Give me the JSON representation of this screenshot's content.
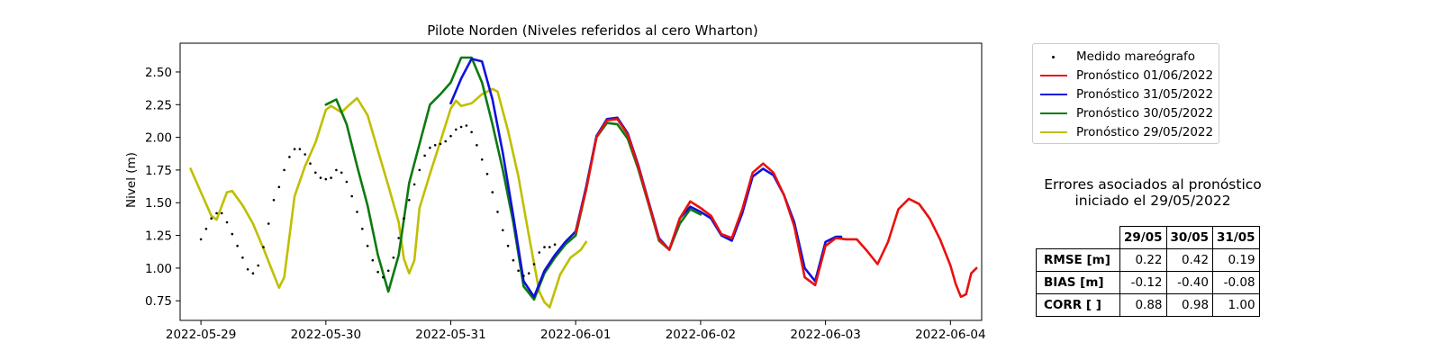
{
  "chart_data": {
    "type": "line",
    "title": "Pilote Norden (Niveles referidos al cero Wharton)",
    "xlabel": "",
    "ylabel": "Nivel (m)",
    "xlim": [
      "2022-05-28T20:00",
      "2022-06-04T06:00"
    ],
    "ylim": [
      0.6,
      2.72
    ],
    "x_ticks": [
      "2022-05-29",
      "2022-05-30",
      "2022-05-31",
      "2022-06-01",
      "2022-06-02",
      "2022-06-03",
      "2022-06-04"
    ],
    "y_ticks": [
      "0.75",
      "1.00",
      "1.25",
      "1.50",
      "1.75",
      "2.00",
      "2.25",
      "2.50"
    ],
    "legend_position": "outside right, top",
    "series": [
      {
        "name": "Medido mareógrafo",
        "style": "dots",
        "color": "#000000",
        "points": [
          [
            "2022-05-29T00:00",
            1.22
          ],
          [
            "2022-05-29T01:00",
            1.3
          ],
          [
            "2022-05-29T02:00",
            1.38
          ],
          [
            "2022-05-29T03:00",
            1.42
          ],
          [
            "2022-05-29T04:00",
            1.42
          ],
          [
            "2022-05-29T05:00",
            1.35
          ],
          [
            "2022-05-29T06:00",
            1.26
          ],
          [
            "2022-05-29T07:00",
            1.17
          ],
          [
            "2022-05-29T08:00",
            1.08
          ],
          [
            "2022-05-29T09:00",
            0.99
          ],
          [
            "2022-05-29T10:00",
            0.96
          ],
          [
            "2022-05-29T11:00",
            1.02
          ],
          [
            "2022-05-29T12:00",
            1.16
          ],
          [
            "2022-05-29T13:00",
            1.34
          ],
          [
            "2022-05-29T14:00",
            1.52
          ],
          [
            "2022-05-29T15:00",
            1.62
          ],
          [
            "2022-05-29T16:00",
            1.75
          ],
          [
            "2022-05-29T17:00",
            1.85
          ],
          [
            "2022-05-29T18:00",
            1.91
          ],
          [
            "2022-05-29T19:00",
            1.91
          ],
          [
            "2022-05-29T20:00",
            1.87
          ],
          [
            "2022-05-29T21:00",
            1.8
          ],
          [
            "2022-05-29T22:00",
            1.73
          ],
          [
            "2022-05-29T23:00",
            1.69
          ],
          [
            "2022-05-30T00:00",
            1.68
          ],
          [
            "2022-05-30T01:00",
            1.69
          ],
          [
            "2022-05-30T02:00",
            1.75
          ],
          [
            "2022-05-30T03:00",
            1.73
          ],
          [
            "2022-05-30T04:00",
            1.66
          ],
          [
            "2022-05-30T05:00",
            1.55
          ],
          [
            "2022-05-30T06:00",
            1.43
          ],
          [
            "2022-05-30T07:00",
            1.3
          ],
          [
            "2022-05-30T08:00",
            1.17
          ],
          [
            "2022-05-30T09:00",
            1.06
          ],
          [
            "2022-05-30T10:00",
            0.97
          ],
          [
            "2022-05-30T11:00",
            0.93
          ],
          [
            "2022-05-30T12:00",
            0.98
          ],
          [
            "2022-05-30T13:00",
            1.08
          ],
          [
            "2022-05-30T14:00",
            1.23
          ],
          [
            "2022-05-30T15:00",
            1.38
          ],
          [
            "2022-05-30T16:00",
            1.52
          ],
          [
            "2022-05-30T17:00",
            1.64
          ],
          [
            "2022-05-30T18:00",
            1.75
          ],
          [
            "2022-05-30T19:00",
            1.86
          ],
          [
            "2022-05-30T20:00",
            1.92
          ],
          [
            "2022-05-30T21:00",
            1.94
          ],
          [
            "2022-05-30T22:00",
            1.95
          ],
          [
            "2022-05-30T23:00",
            1.97
          ],
          [
            "2022-05-31T00:00",
            2.01
          ],
          [
            "2022-05-31T01:00",
            2.06
          ],
          [
            "2022-05-31T02:00",
            2.08
          ],
          [
            "2022-05-31T03:00",
            2.09
          ],
          [
            "2022-05-31T04:00",
            2.04
          ],
          [
            "2022-05-31T05:00",
            1.94
          ],
          [
            "2022-05-31T06:00",
            1.83
          ],
          [
            "2022-05-31T07:00",
            1.72
          ],
          [
            "2022-05-31T08:00",
            1.58
          ],
          [
            "2022-05-31T09:00",
            1.43
          ],
          [
            "2022-05-31T10:00",
            1.29
          ],
          [
            "2022-05-31T11:00",
            1.17
          ],
          [
            "2022-05-31T12:00",
            1.06
          ],
          [
            "2022-05-31T13:00",
            0.98
          ],
          [
            "2022-05-31T14:00",
            0.94
          ],
          [
            "2022-05-31T15:00",
            0.96
          ],
          [
            "2022-05-31T16:00",
            1.03
          ],
          [
            "2022-05-31T17:00",
            1.12
          ],
          [
            "2022-05-31T18:00",
            1.16
          ],
          [
            "2022-05-31T19:00",
            1.16
          ],
          [
            "2022-05-31T20:00",
            1.18
          ]
        ]
      },
      {
        "name": "Pronóstico 01/06/2022",
        "style": "line",
        "color": "#e8110f",
        "points": [
          [
            "2022-06-01T00:00",
            1.27
          ],
          [
            "2022-06-01T02:00",
            1.6
          ],
          [
            "2022-06-01T04:00",
            2.0
          ],
          [
            "2022-06-01T06:00",
            2.13
          ],
          [
            "2022-06-01T08:00",
            2.14
          ],
          [
            "2022-06-01T10:00",
            2.02
          ],
          [
            "2022-06-01T12:00",
            1.78
          ],
          [
            "2022-06-01T14:00",
            1.5
          ],
          [
            "2022-06-01T16:00",
            1.22
          ],
          [
            "2022-06-01T18:00",
            1.14
          ],
          [
            "2022-06-01T20:00",
            1.38
          ],
          [
            "2022-06-01T22:00",
            1.51
          ],
          [
            "2022-06-02T00:00",
            1.46
          ],
          [
            "2022-06-02T02:00",
            1.4
          ],
          [
            "2022-06-02T04:00",
            1.26
          ],
          [
            "2022-06-02T06:00",
            1.23
          ],
          [
            "2022-06-02T08:00",
            1.45
          ],
          [
            "2022-06-02T10:00",
            1.73
          ],
          [
            "2022-06-02T12:00",
            1.8
          ],
          [
            "2022-06-02T14:00",
            1.73
          ],
          [
            "2022-06-02T16:00",
            1.56
          ],
          [
            "2022-06-02T18:00",
            1.32
          ],
          [
            "2022-06-02T20:00",
            0.93
          ],
          [
            "2022-06-02T22:00",
            0.87
          ],
          [
            "2022-06-03T00:00",
            1.17
          ],
          [
            "2022-06-03T02:00",
            1.23
          ],
          [
            "2022-06-03T04:00",
            1.22
          ],
          [
            "2022-06-03T06:00",
            1.22
          ],
          [
            "2022-06-03T08:00",
            1.13
          ],
          [
            "2022-06-03T10:00",
            1.03
          ],
          [
            "2022-06-03T12:00",
            1.2
          ],
          [
            "2022-06-03T14:00",
            1.45
          ],
          [
            "2022-06-03T16:00",
            1.53
          ],
          [
            "2022-06-03T18:00",
            1.49
          ],
          [
            "2022-06-03T20:00",
            1.38
          ],
          [
            "2022-06-03T22:00",
            1.22
          ],
          [
            "2022-06-04T00:00",
            1.02
          ],
          [
            "2022-06-04T01:00",
            0.88
          ],
          [
            "2022-06-04T02:00",
            0.78
          ],
          [
            "2022-06-04T03:00",
            0.8
          ],
          [
            "2022-06-04T04:00",
            0.96
          ],
          [
            "2022-06-04T05:00",
            1.0
          ]
        ]
      },
      {
        "name": "Pronóstico 31/05/2022",
        "style": "line",
        "color": "#1010dd",
        "points": [
          [
            "2022-05-31T00:00",
            2.26
          ],
          [
            "2022-05-31T02:00",
            2.45
          ],
          [
            "2022-05-31T04:00",
            2.6
          ],
          [
            "2022-05-31T06:00",
            2.58
          ],
          [
            "2022-05-31T08:00",
            2.29
          ],
          [
            "2022-05-31T10:00",
            1.88
          ],
          [
            "2022-05-31T12:00",
            1.4
          ],
          [
            "2022-05-31T14:00",
            0.9
          ],
          [
            "2022-05-31T16:00",
            0.78
          ],
          [
            "2022-05-31T18:00",
            0.98
          ],
          [
            "2022-05-31T20:00",
            1.1
          ],
          [
            "2022-05-31T22:00",
            1.2
          ],
          [
            "2022-06-01T00:00",
            1.28
          ],
          [
            "2022-06-01T02:00",
            1.62
          ],
          [
            "2022-06-01T04:00",
            2.01
          ],
          [
            "2022-06-01T06:00",
            2.14
          ],
          [
            "2022-06-01T08:00",
            2.15
          ],
          [
            "2022-06-01T10:00",
            2.03
          ],
          [
            "2022-06-01T12:00",
            1.79
          ],
          [
            "2022-06-01T14:00",
            1.51
          ],
          [
            "2022-06-01T16:00",
            1.23
          ],
          [
            "2022-06-01T18:00",
            1.14
          ],
          [
            "2022-06-01T20:00",
            1.38
          ],
          [
            "2022-06-01T22:00",
            1.47
          ],
          [
            "2022-06-02T00:00",
            1.43
          ],
          [
            "2022-06-02T02:00",
            1.38
          ],
          [
            "2022-06-02T04:00",
            1.25
          ],
          [
            "2022-06-02T06:00",
            1.21
          ],
          [
            "2022-06-02T08:00",
            1.42
          ],
          [
            "2022-06-02T10:00",
            1.7
          ],
          [
            "2022-06-02T12:00",
            1.76
          ],
          [
            "2022-06-02T14:00",
            1.71
          ],
          [
            "2022-06-02T16:00",
            1.56
          ],
          [
            "2022-06-02T18:00",
            1.35
          ],
          [
            "2022-06-02T20:00",
            1.0
          ],
          [
            "2022-06-02T22:00",
            0.9
          ],
          [
            "2022-06-03T00:00",
            1.2
          ],
          [
            "2022-06-03T02:00",
            1.24
          ],
          [
            "2022-06-03T03:00",
            1.24
          ]
        ]
      },
      {
        "name": "Pronóstico 30/05/2022",
        "style": "line",
        "color": "#0b7a10",
        "points": [
          [
            "2022-05-30T00:00",
            2.25
          ],
          [
            "2022-05-30T02:00",
            2.29
          ],
          [
            "2022-05-30T04:00",
            2.1
          ],
          [
            "2022-05-30T06:00",
            1.78
          ],
          [
            "2022-05-30T08:00",
            1.48
          ],
          [
            "2022-05-30T10:00",
            1.1
          ],
          [
            "2022-05-30T12:00",
            0.82
          ],
          [
            "2022-05-30T14:00",
            1.1
          ],
          [
            "2022-05-30T16:00",
            1.65
          ],
          [
            "2022-05-30T18:00",
            1.95
          ],
          [
            "2022-05-30T20:00",
            2.25
          ],
          [
            "2022-05-30T22:00",
            2.33
          ],
          [
            "2022-05-31T00:00",
            2.42
          ],
          [
            "2022-05-31T02:00",
            2.61
          ],
          [
            "2022-05-31T04:00",
            2.61
          ],
          [
            "2022-05-31T06:00",
            2.42
          ],
          [
            "2022-05-31T08:00",
            2.1
          ],
          [
            "2022-05-31T10:00",
            1.75
          ],
          [
            "2022-05-31T12:00",
            1.35
          ],
          [
            "2022-05-31T14:00",
            0.86
          ],
          [
            "2022-05-31T16:00",
            0.76
          ],
          [
            "2022-05-31T18:00",
            0.96
          ],
          [
            "2022-05-31T20:00",
            1.08
          ],
          [
            "2022-05-31T22:00",
            1.18
          ],
          [
            "2022-06-01T00:00",
            1.25
          ],
          [
            "2022-06-01T02:00",
            1.6
          ],
          [
            "2022-06-01T04:00",
            2.0
          ],
          [
            "2022-06-01T06:00",
            2.11
          ],
          [
            "2022-06-01T08:00",
            2.1
          ],
          [
            "2022-06-01T10:00",
            1.99
          ],
          [
            "2022-06-01T12:00",
            1.76
          ],
          [
            "2022-06-01T14:00",
            1.49
          ],
          [
            "2022-06-01T16:00",
            1.21
          ],
          [
            "2022-06-01T18:00",
            1.14
          ],
          [
            "2022-06-01T20:00",
            1.34
          ],
          [
            "2022-06-01T22:00",
            1.45
          ],
          [
            "2022-06-02T00:00",
            1.41
          ]
        ]
      },
      {
        "name": "Pronóstico 29/05/2022",
        "style": "line",
        "color": "#bfbf00",
        "points": [
          [
            "2022-05-28T22:00",
            1.76
          ],
          [
            "2022-05-29T00:00",
            1.58
          ],
          [
            "2022-05-29T02:00",
            1.4
          ],
          [
            "2022-05-29T03:00",
            1.37
          ],
          [
            "2022-05-29T05:00",
            1.58
          ],
          [
            "2022-05-29T06:00",
            1.59
          ],
          [
            "2022-05-29T08:00",
            1.48
          ],
          [
            "2022-05-29T10:00",
            1.34
          ],
          [
            "2022-05-29T12:00",
            1.15
          ],
          [
            "2022-05-29T14:00",
            0.95
          ],
          [
            "2022-05-29T15:00",
            0.85
          ],
          [
            "2022-05-29T16:00",
            0.93
          ],
          [
            "2022-05-29T18:00",
            1.55
          ],
          [
            "2022-05-29T20:00",
            1.78
          ],
          [
            "2022-05-29T22:00",
            1.96
          ],
          [
            "2022-05-30T00:00",
            2.21
          ],
          [
            "2022-05-30T01:00",
            2.24
          ],
          [
            "2022-05-30T03:00",
            2.19
          ],
          [
            "2022-05-30T04:00",
            2.23
          ],
          [
            "2022-05-30T06:00",
            2.3
          ],
          [
            "2022-05-30T08:00",
            2.17
          ],
          [
            "2022-05-30T10:00",
            1.9
          ],
          [
            "2022-05-30T12:00",
            1.63
          ],
          [
            "2022-05-30T14:00",
            1.35
          ],
          [
            "2022-05-30T15:00",
            1.07
          ],
          [
            "2022-05-30T16:00",
            0.96
          ],
          [
            "2022-05-30T17:00",
            1.06
          ],
          [
            "2022-05-30T18:00",
            1.46
          ],
          [
            "2022-05-30T20:00",
            1.72
          ],
          [
            "2022-05-30T22:00",
            1.97
          ],
          [
            "2022-05-31T00:00",
            2.22
          ],
          [
            "2022-05-31T01:00",
            2.28
          ],
          [
            "2022-05-31T02:00",
            2.24
          ],
          [
            "2022-05-31T04:00",
            2.26
          ],
          [
            "2022-05-31T06:00",
            2.33
          ],
          [
            "2022-05-31T08:00",
            2.37
          ],
          [
            "2022-05-31T09:00",
            2.35
          ],
          [
            "2022-05-31T11:00",
            2.05
          ],
          [
            "2022-05-31T13:00",
            1.7
          ],
          [
            "2022-05-31T15:00",
            1.25
          ],
          [
            "2022-05-31T17:00",
            0.82
          ],
          [
            "2022-05-31T18:00",
            0.74
          ],
          [
            "2022-05-31T19:00",
            0.7
          ],
          [
            "2022-05-31T21:00",
            0.95
          ],
          [
            "2022-05-31T23:00",
            1.08
          ],
          [
            "2022-06-01T01:00",
            1.14
          ],
          [
            "2022-06-01T02:00",
            1.2
          ]
        ]
      }
    ]
  },
  "errors": {
    "title_line1": "Errores asociados al pronóstico",
    "title_line2": "iniciado el 29/05/2022",
    "columns": [
      "29/05",
      "30/05",
      "31/05"
    ],
    "rows": [
      {
        "label": "RMSE [m]",
        "values": [
          "0.22",
          "0.42",
          "0.19"
        ]
      },
      {
        "label": "BIAS [m]",
        "values": [
          "-0.12",
          "-0.40",
          "-0.08"
        ]
      },
      {
        "label": "CORR [ ]",
        "values": [
          "0.88",
          "0.98",
          "1.00"
        ]
      }
    ]
  }
}
